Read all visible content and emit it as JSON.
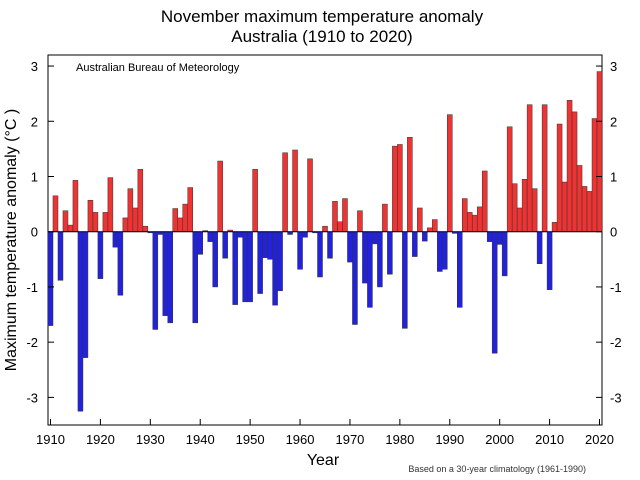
{
  "chart_data": {
    "type": "bar",
    "title": "November maximum temperature anomaly",
    "subtitle": "Australia (1910 to 2020)",
    "xlabel": "Year",
    "ylabel": "Maximum temperature anomaly (°C )",
    "annotation": "Australian Bureau of Meteorology",
    "footnote": "Based on a 30-year climatology (1961-1990)",
    "xlim": [
      1909.5,
      2020.5
    ],
    "ylim": [
      -3.5,
      3.2
    ],
    "x_ticks": [
      1910,
      1920,
      1930,
      1940,
      1950,
      1960,
      1970,
      1980,
      1990,
      2000,
      2010,
      2020
    ],
    "y_ticks": [
      -3,
      -2,
      -1,
      0,
      1,
      2,
      3
    ],
    "grid": false,
    "colors": {
      "positive": "#ee3333",
      "negative": "#2222dd",
      "edge": "#333333"
    },
    "years": [
      1910,
      1911,
      1912,
      1913,
      1914,
      1915,
      1916,
      1917,
      1918,
      1919,
      1920,
      1921,
      1922,
      1923,
      1924,
      1925,
      1926,
      1927,
      1928,
      1929,
      1930,
      1931,
      1932,
      1933,
      1934,
      1935,
      1936,
      1937,
      1938,
      1939,
      1940,
      1941,
      1942,
      1943,
      1944,
      1945,
      1946,
      1947,
      1948,
      1949,
      1950,
      1951,
      1952,
      1953,
      1954,
      1955,
      1956,
      1957,
      1958,
      1959,
      1960,
      1961,
      1962,
      1963,
      1964,
      1965,
      1966,
      1967,
      1968,
      1969,
      1970,
      1971,
      1972,
      1973,
      1974,
      1975,
      1976,
      1977,
      1978,
      1979,
      1980,
      1981,
      1982,
      1983,
      1984,
      1985,
      1986,
      1987,
      1988,
      1989,
      1990,
      1991,
      1992,
      1993,
      1994,
      1995,
      1996,
      1997,
      1998,
      1999,
      2000,
      2001,
      2002,
      2003,
      2004,
      2005,
      2006,
      2007,
      2008,
      2009,
      2010,
      2011,
      2012,
      2013,
      2014,
      2015,
      2016,
      2017,
      2018,
      2019,
      2020
    ],
    "values": [
      -1.7,
      0.65,
      -0.88,
      0.38,
      0.12,
      0.93,
      -3.25,
      -2.28,
      0.57,
      0.35,
      -0.85,
      0.35,
      0.98,
      -0.28,
      -1.15,
      0.25,
      0.78,
      0.43,
      1.13,
      0.1,
      -0.02,
      -1.77,
      -0.05,
      -1.52,
      -1.65,
      0.42,
      0.25,
      0.5,
      0.8,
      -1.65,
      -0.41,
      0.02,
      -0.18,
      -1.0,
      1.28,
      -0.48,
      0.03,
      -1.32,
      -0.1,
      -1.27,
      -1.27,
      1.13,
      -1.12,
      -0.47,
      -0.5,
      -1.33,
      -1.07,
      1.43,
      -0.05,
      1.48,
      -0.68,
      -0.1,
      1.32,
      -0.02,
      -0.82,
      0.1,
      -0.48,
      0.55,
      0.18,
      0.6,
      -0.55,
      -1.68,
      0.38,
      -0.93,
      -1.37,
      -0.22,
      -1.0,
      0.5,
      -0.77,
      1.55,
      1.58,
      -1.75,
      1.71,
      -0.45,
      0.43,
      -0.17,
      0.07,
      0.22,
      -0.72,
      -0.68,
      2.12,
      -0.03,
      -1.37,
      0.6,
      0.35,
      0.3,
      0.45,
      1.1,
      -0.18,
      -2.2,
      -0.23,
      -0.8,
      1.9,
      0.87,
      0.43,
      0.95,
      2.3,
      0.78,
      -0.58,
      2.3,
      -1.05,
      0.17,
      1.95,
      0.9,
      2.38,
      2.17,
      1.2,
      0.82,
      0.73,
      2.05,
      2.9
    ]
  }
}
